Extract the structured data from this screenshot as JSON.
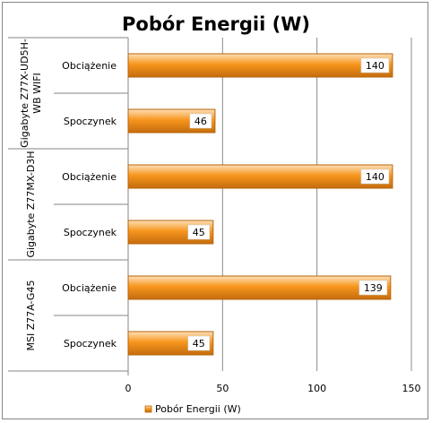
{
  "chart_data": {
    "type": "bar",
    "orientation": "horizontal",
    "title": "Pobór Energii (W)",
    "groups": [
      {
        "name": "Gigabyte Z77X-UD5H-\nWB WIFI",
        "lines": [
          "Gigabyte Z77X-UD5H-",
          "WB WIFI"
        ],
        "items": [
          {
            "label": "Obciążenie",
            "value": 140
          },
          {
            "label": "Spoczynek",
            "value": 46
          }
        ]
      },
      {
        "name": "Gigabyte Z77MX-D3H",
        "lines": [
          "Gigabyte Z77MX-D3H"
        ],
        "items": [
          {
            "label": "Obciążenie",
            "value": 140
          },
          {
            "label": "Spoczynek",
            "value": 45
          }
        ]
      },
      {
        "name": "MSI Z77A-G45",
        "lines": [
          "MSI Z77A-G45"
        ],
        "items": [
          {
            "label": "Obciążenie",
            "value": 139
          },
          {
            "label": "Spoczynek",
            "value": 45
          }
        ]
      }
    ],
    "xlim": [
      0,
      150
    ],
    "xticks": [
      0,
      50,
      100,
      150
    ],
    "grid": true,
    "legend": {
      "position": "bottom",
      "entries": [
        "Pobór Energii (W)"
      ]
    },
    "colors": {
      "bar_light": "#fbc68a",
      "bar_main": "#f7961d",
      "bar_dark": "#b8650b",
      "grid": "#8a8a8a"
    }
  }
}
